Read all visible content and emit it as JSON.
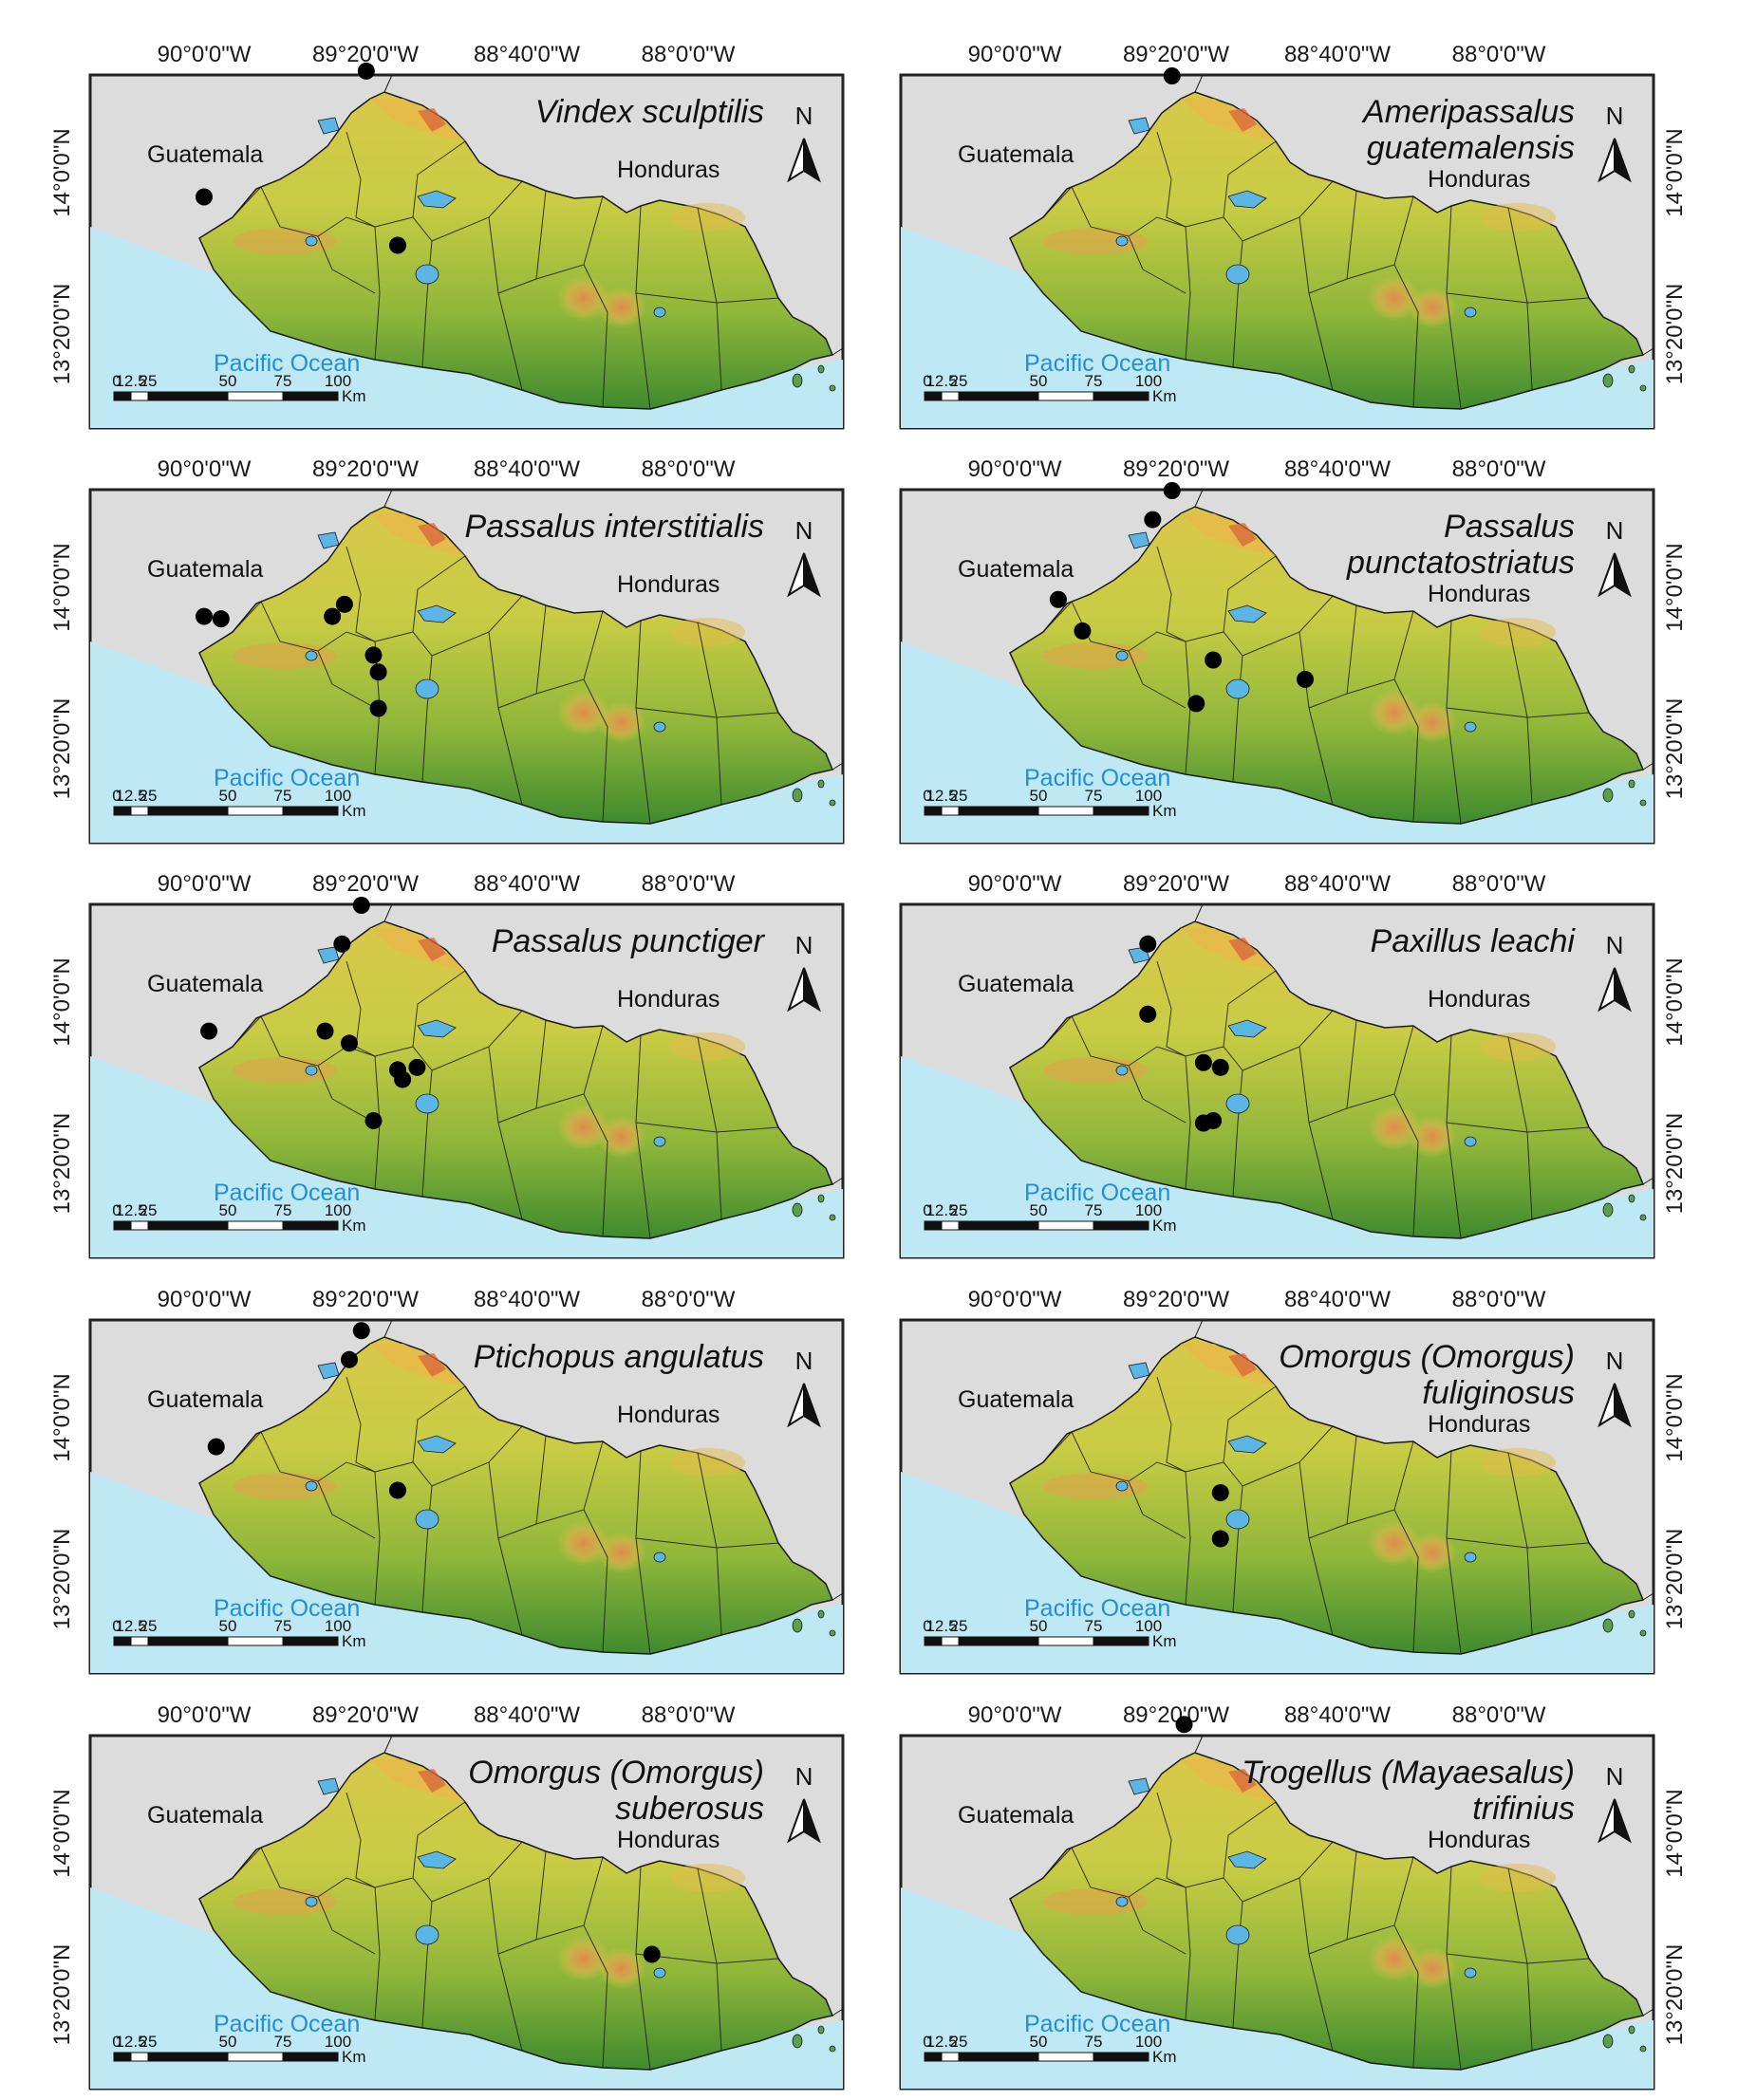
{
  "figure": {
    "longitude_labels": [
      "90°0'0\"W",
      "89°20'0\"W",
      "88°40'0\"W",
      "88°0'0\"W"
    ],
    "latitude_labels": [
      "14°0'0\"N",
      "13°20'0\"N"
    ],
    "country_labels": {
      "west": "Guatemala",
      "north_east": "Honduras"
    },
    "ocean_label": "Pacific Ocean",
    "north_arrow_label": "N",
    "scale_bar": {
      "labels": [
        "0",
        "12.5",
        "25",
        "50",
        "75",
        "100"
      ],
      "unit": "Km"
    },
    "colors": {
      "ocean": "#bfe8f5",
      "land_low": "#3f8a2e",
      "land_mid": "#b7c63a",
      "land_high": "#e9b94a",
      "peaks": "#d9643a",
      "neighbor": "#dcdcdc",
      "lakes": "#5bb6e6",
      "records": "#000000"
    }
  },
  "panels": [
    {
      "species": [
        "Vindex sculptilis"
      ],
      "records": [
        [
          -89.33,
          14.42
        ],
        [
          -90.0,
          13.9
        ],
        [
          -89.2,
          13.7
        ]
      ]
    },
    {
      "species": [
        "Ameripassalus",
        "guatemalensis"
      ],
      "records": [
        [
          -89.35,
          14.4
        ]
      ]
    },
    {
      "species": [
        "Passalus interstitialis"
      ],
      "records": [
        [
          -90.0,
          13.88
        ],
        [
          -89.93,
          13.87
        ],
        [
          -89.47,
          13.88
        ],
        [
          -89.42,
          13.93
        ],
        [
          -89.3,
          13.72
        ],
        [
          -89.28,
          13.65
        ],
        [
          -89.28,
          13.5
        ]
      ]
    },
    {
      "species": [
        "Passalus",
        "punctatostriatus"
      ],
      "records": [
        [
          -89.35,
          14.4
        ],
        [
          -89.43,
          14.28
        ],
        [
          -89.82,
          13.95
        ],
        [
          -89.72,
          13.82
        ],
        [
          -89.18,
          13.7
        ],
        [
          -89.25,
          13.52
        ],
        [
          -88.8,
          13.62
        ]
      ]
    },
    {
      "species": [
        "Passalus punctiger"
      ],
      "records": [
        [
          -89.35,
          14.4
        ],
        [
          -89.43,
          14.24
        ],
        [
          -89.98,
          13.88
        ],
        [
          -89.5,
          13.88
        ],
        [
          -89.4,
          13.83
        ],
        [
          -89.2,
          13.72
        ],
        [
          -89.18,
          13.68
        ],
        [
          -89.12,
          13.73
        ],
        [
          -89.3,
          13.51
        ]
      ]
    },
    {
      "species": [
        "Paxillus leachi"
      ],
      "records": [
        [
          -89.45,
          14.24
        ],
        [
          -89.45,
          13.95
        ],
        [
          -89.22,
          13.75
        ],
        [
          -89.15,
          13.73
        ],
        [
          -89.22,
          13.5
        ],
        [
          -89.18,
          13.51
        ]
      ]
    },
    {
      "species": [
        "Ptichopus angulatus"
      ],
      "records": [
        [
          -89.35,
          14.36
        ],
        [
          -89.4,
          14.24
        ],
        [
          -89.95,
          13.88
        ],
        [
          -89.2,
          13.7
        ]
      ]
    },
    {
      "species": [
        "Omorgus (Omorgus)",
        "fuliginosus"
      ],
      "records": [
        [
          -89.15,
          13.69
        ],
        [
          -89.15,
          13.5
        ]
      ]
    },
    {
      "species": [
        "Omorgus (Omorgus)",
        "suberosus"
      ],
      "records": [
        [
          -88.15,
          13.5
        ]
      ]
    },
    {
      "species": [
        "Trogellus (Mayaesalus)",
        "trifinius"
      ],
      "records": [
        [
          -89.3,
          14.45
        ]
      ]
    }
  ]
}
